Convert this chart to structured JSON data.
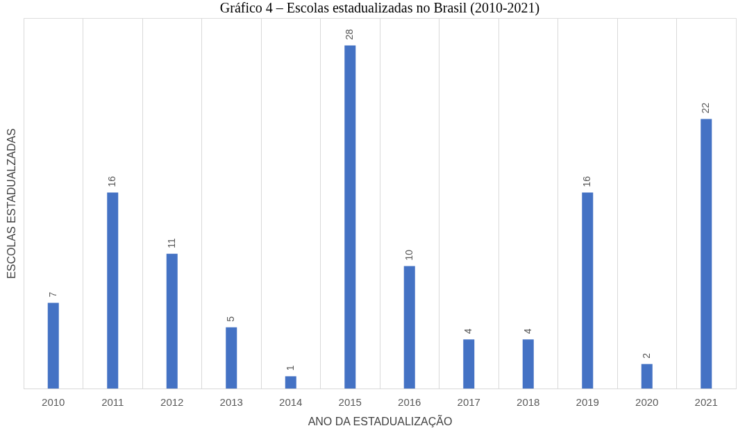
{
  "chart_data": {
    "type": "bar",
    "title": "Gráfico 4 – Escolas estadualizadas no Brasil (2010-2021)",
    "xlabel": "ANO DA ESTADUALIZAÇÃO",
    "ylabel": "ESCOLAS ESTADUALZADAS",
    "categories": [
      "2010",
      "2011",
      "2012",
      "2013",
      "2014",
      "2015",
      "2016",
      "2017",
      "2018",
      "2019",
      "2020",
      "2021"
    ],
    "values": [
      7,
      16,
      11,
      5,
      1,
      28,
      10,
      4,
      4,
      16,
      2,
      22
    ],
    "color": "#4472c4",
    "data_labels": true,
    "grid": "x"
  }
}
